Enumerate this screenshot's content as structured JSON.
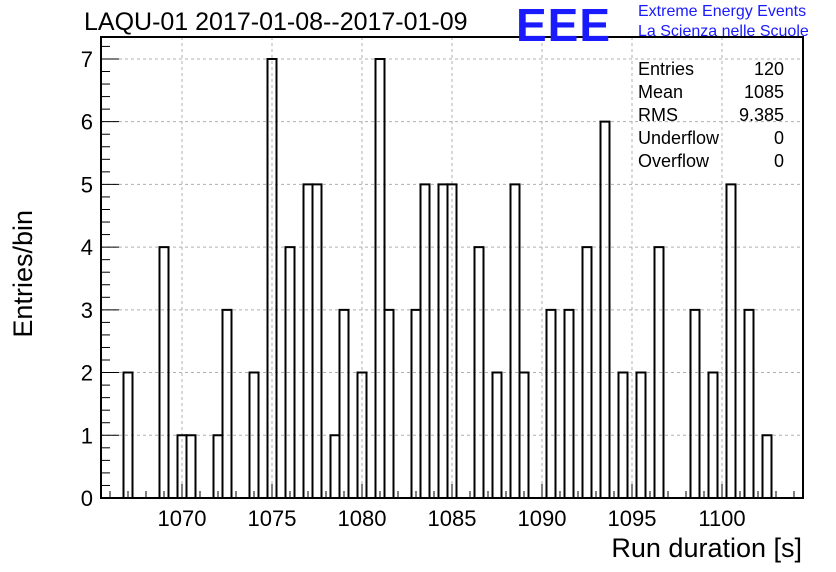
{
  "chart_data": {
    "type": "bar",
    "title": "LAQU-01 2017-01-08--2017-01-09",
    "xlabel": "Run duration [s]",
    "ylabel": "Entries/bin",
    "xlim": [
      1065.5,
      1104.5
    ],
    "ylim": [
      0,
      7.35
    ],
    "bin_width": 0.5,
    "x_ticks": [
      1070,
      1075,
      1080,
      1085,
      1090,
      1095,
      1100
    ],
    "y_ticks": [
      0,
      1,
      2,
      3,
      4,
      5,
      6,
      7
    ],
    "grid": true,
    "bins": [
      {
        "x": 1067.0,
        "value": 2
      },
      {
        "x": 1069.0,
        "value": 4
      },
      {
        "x": 1070.0,
        "value": 1
      },
      {
        "x": 1070.5,
        "value": 1
      },
      {
        "x": 1072.0,
        "value": 1
      },
      {
        "x": 1072.5,
        "value": 3
      },
      {
        "x": 1074.0,
        "value": 2
      },
      {
        "x": 1075.0,
        "value": 7
      },
      {
        "x": 1076.0,
        "value": 4
      },
      {
        "x": 1077.0,
        "value": 5
      },
      {
        "x": 1077.5,
        "value": 5
      },
      {
        "x": 1078.5,
        "value": 1
      },
      {
        "x": 1079.0,
        "value": 3
      },
      {
        "x": 1080.0,
        "value": 2
      },
      {
        "x": 1081.0,
        "value": 7
      },
      {
        "x": 1081.5,
        "value": 3
      },
      {
        "x": 1083.0,
        "value": 3
      },
      {
        "x": 1083.5,
        "value": 5
      },
      {
        "x": 1084.5,
        "value": 5
      },
      {
        "x": 1085.0,
        "value": 5
      },
      {
        "x": 1086.5,
        "value": 4
      },
      {
        "x": 1087.5,
        "value": 2
      },
      {
        "x": 1088.5,
        "value": 5
      },
      {
        "x": 1089.0,
        "value": 2
      },
      {
        "x": 1090.5,
        "value": 3
      },
      {
        "x": 1091.5,
        "value": 3
      },
      {
        "x": 1092.5,
        "value": 4
      },
      {
        "x": 1093.5,
        "value": 6
      },
      {
        "x": 1094.5,
        "value": 2
      },
      {
        "x": 1095.5,
        "value": 2
      },
      {
        "x": 1096.5,
        "value": 4
      },
      {
        "x": 1098.5,
        "value": 3
      },
      {
        "x": 1099.5,
        "value": 2
      },
      {
        "x": 1100.5,
        "value": 5
      },
      {
        "x": 1101.5,
        "value": 3
      },
      {
        "x": 1102.5,
        "value": 1
      }
    ]
  },
  "stats": [
    {
      "label": "Entries",
      "value": "120"
    },
    {
      "label": "Mean",
      "value": "1085"
    },
    {
      "label": "RMS",
      "value": "9.385"
    },
    {
      "label": "Underflow",
      "value": "0"
    },
    {
      "label": "Overflow",
      "value": "0"
    }
  ],
  "logo": {
    "mark": "EEE",
    "line1": "Extreme Energy Events",
    "line2": "La Scienza nelle Scuole",
    "color": "#1a1aff"
  }
}
